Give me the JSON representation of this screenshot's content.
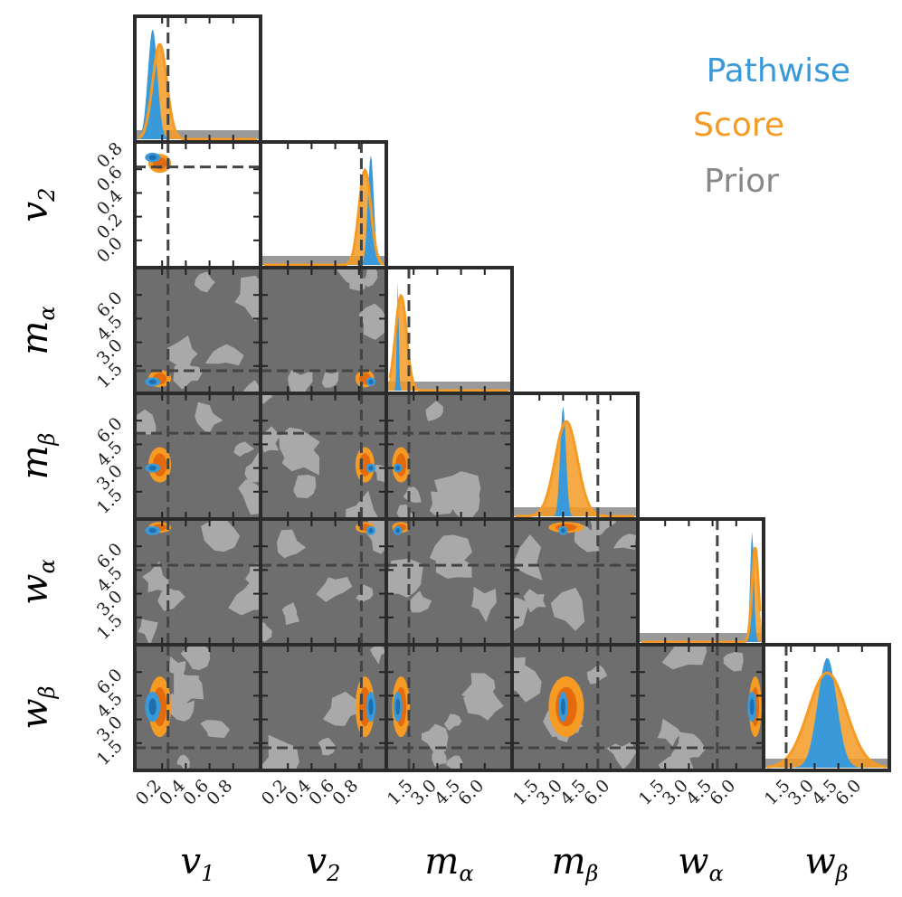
{
  "chart_data": {
    "type": "corner",
    "parameters": [
      {
        "symbol": "v",
        "sub": "1",
        "range": [
          0,
          1
        ],
        "truth": 0.25,
        "ticks": [
          "0.2",
          "0.4",
          "0.6",
          "0.8"
        ]
      },
      {
        "symbol": "v",
        "sub": "2",
        "range": [
          0,
          1
        ],
        "truth": 0.82,
        "ticks": [
          "0.2",
          "0.4",
          "0.6",
          "0.8"
        ]
      },
      {
        "symbol": "m",
        "sub": "α",
        "range": [
          0,
          7.5
        ],
        "truth": 1.2,
        "ticks": [
          "1.5",
          "3.0",
          "4.5",
          "6.0"
        ]
      },
      {
        "symbol": "m",
        "sub": "β",
        "range": [
          0,
          7.5
        ],
        "truth": 5.2,
        "ticks": [
          "1.5",
          "3.0",
          "4.5",
          "6.0"
        ]
      },
      {
        "symbol": "w",
        "sub": "α",
        "range": [
          0,
          7.5
        ],
        "truth": 4.8,
        "ticks": [
          "1.5",
          "3.0",
          "4.5",
          "6.0"
        ]
      },
      {
        "symbol": "w",
        "sub": "β",
        "range": [
          0,
          7.5
        ],
        "truth": 1.2,
        "ticks": [
          "1.5",
          "3.0",
          "4.5",
          "6.0"
        ]
      }
    ],
    "row_tick_labels": [
      "0.0",
      "0.0",
      "0.2",
      "0.4",
      "0.6",
      "0.8"
    ],
    "series": [
      {
        "name": "Pathwise",
        "color": "#3a9ad9",
        "means": [
          0.12,
          0.9,
          0.5,
          3.0,
          7.0,
          3.8
        ],
        "sds": [
          0.04,
          0.025,
          0.06,
          0.18,
          0.12,
          0.6
        ]
      },
      {
        "name": "Score",
        "color": "#f59b24",
        "means": [
          0.18,
          0.85,
          0.7,
          3.2,
          7.2,
          3.8
        ],
        "sds": [
          0.06,
          0.05,
          0.35,
          0.7,
          0.2,
          1.2
        ]
      },
      {
        "name": "Prior",
        "color": "#888888",
        "means": [],
        "sds": []
      }
    ],
    "legend": {
      "position": "top-right",
      "entries": [
        "Pathwise",
        "Score",
        "Prior"
      ]
    },
    "truth_line_style": "dashed",
    "grid": false
  }
}
